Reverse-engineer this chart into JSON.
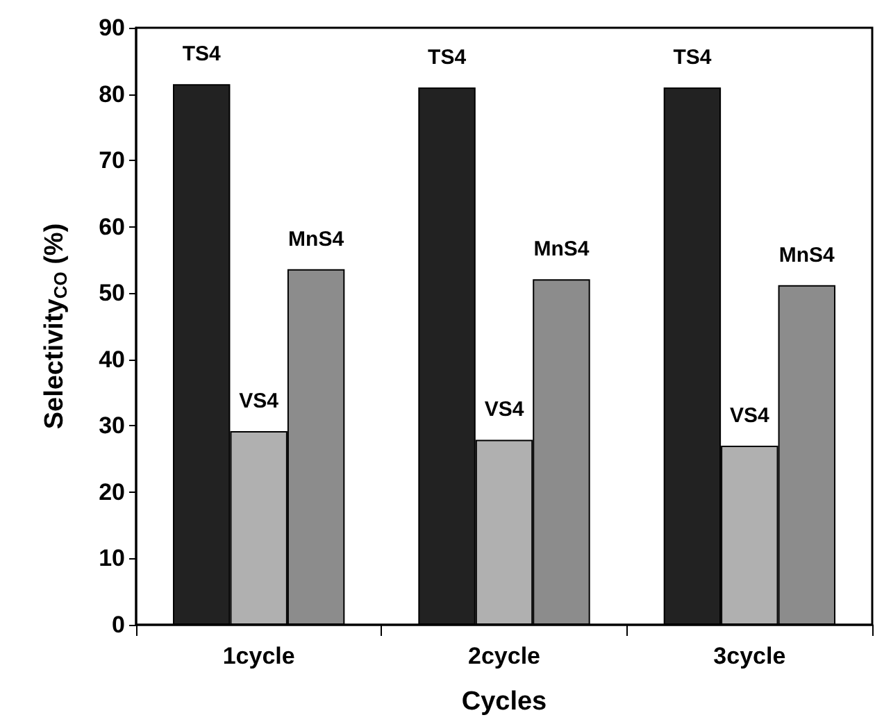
{
  "chart_data": {
    "type": "bar",
    "xlabel": "Cycles",
    "ylabel": "Selectivity$_{CO}$ (%)",
    "categories": [
      "1cycle",
      "2cycle",
      "3cycle"
    ],
    "series": [
      {
        "name": "TS4",
        "color": "#222222",
        "values": [
          81.5,
          81,
          81
        ]
      },
      {
        "name": "VS4",
        "color": "#b0b0b0",
        "values": [
          29.2,
          27.9,
          27
        ]
      },
      {
        "name": "MnS4",
        "color": "#8c8c8c",
        "values": [
          53.6,
          52.1,
          51.2
        ]
      }
    ],
    "ylim": [
      0,
      90
    ],
    "yticks": [
      0,
      10,
      20,
      30,
      40,
      50,
      60,
      70,
      80,
      90
    ],
    "grid": false,
    "legend": false
  }
}
